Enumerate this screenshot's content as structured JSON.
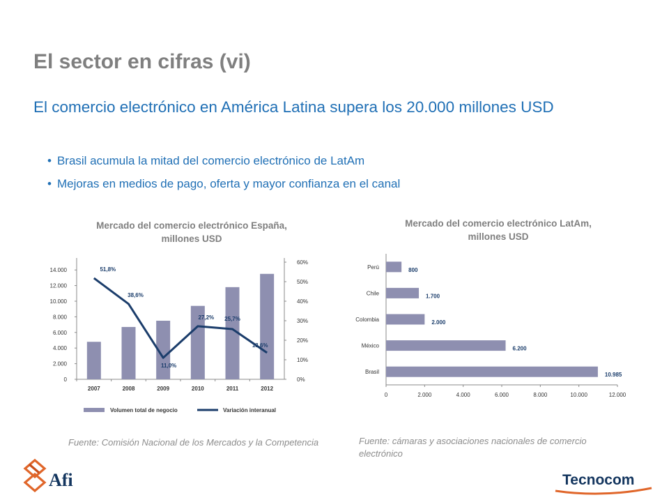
{
  "slide": {
    "title": "El sector en cifras (vi)",
    "subtitle": "El comercio electrónico en América Latina supera los 20.000 millones USD",
    "bullets": [
      "Brasil acumula la mitad del comercio electrónico de LatAm",
      "Mejoras en medios de pago, oferta y mayor confianza en el canal"
    ],
    "spain_title_line1": "Mercado del comercio electrónico España,",
    "spain_title_line2": "millones USD",
    "latam_title_line1": "Mercado del comercio electrónico LatAm,",
    "latam_title_line2": "millones USD",
    "spain_source": "Fuente: Comisión Nacional de los Mercados y la Competencia",
    "latam_source": "Fuente: cámaras y asociaciones nacionales de comercio electrónico",
    "logo_afi": "Afi",
    "logo_tecnocom": "Tecnocom"
  },
  "colors": {
    "title_gray": "#7f7f7f",
    "accent_blue": "#1f6fb5",
    "bar": "#8e8fb0",
    "line": "#1b3d6b",
    "afi_orange": "#e0662a",
    "tecnocom_navy": "#13355e"
  },
  "chart_data": [
    {
      "type": "bar",
      "categories": [
        "2007",
        "2008",
        "2009",
        "2010",
        "2011",
        "2012"
      ],
      "series": [
        {
          "name": "Volumen total de negocio",
          "type": "bar",
          "axis": "left",
          "values": [
            4800,
            6700,
            7500,
            9400,
            11800,
            13500
          ]
        },
        {
          "name": "Variación interanual",
          "type": "line",
          "axis": "right",
          "values": [
            51.8,
            38.6,
            11.0,
            27.2,
            25.7,
            13.6
          ],
          "labels": [
            "51,8%",
            "38,6%",
            "11,0%",
            "27,2%",
            "25,7%",
            "13,6%"
          ]
        }
      ],
      "left_ticks": [
        "0",
        "2.000",
        "4.000",
        "6.000",
        "8.000",
        "10.000",
        "12.000",
        "14.000"
      ],
      "right_ticks": [
        "0%",
        "10%",
        "20%",
        "30%",
        "40%",
        "50%",
        "60%"
      ],
      "ylim": [
        0,
        15000
      ],
      "y2lim": [
        0,
        60
      ],
      "legend": "bottom",
      "legend_entries": [
        "Volumen total de negocio",
        "Variación interanual"
      ]
    },
    {
      "type": "bar",
      "orientation": "horizontal",
      "categories": [
        "Perú",
        "Chile",
        "Colombia",
        "México",
        "Brasil"
      ],
      "values": [
        800,
        1700,
        2000,
        6200,
        10985
      ],
      "value_labels": [
        "800",
        "1.700",
        "2.000",
        "6.200",
        "10.985"
      ],
      "x_ticks": [
        "0",
        "2.000",
        "4.000",
        "6.000",
        "8.000",
        "10.000",
        "12.000"
      ],
      "xlim": [
        0,
        12000
      ]
    }
  ]
}
